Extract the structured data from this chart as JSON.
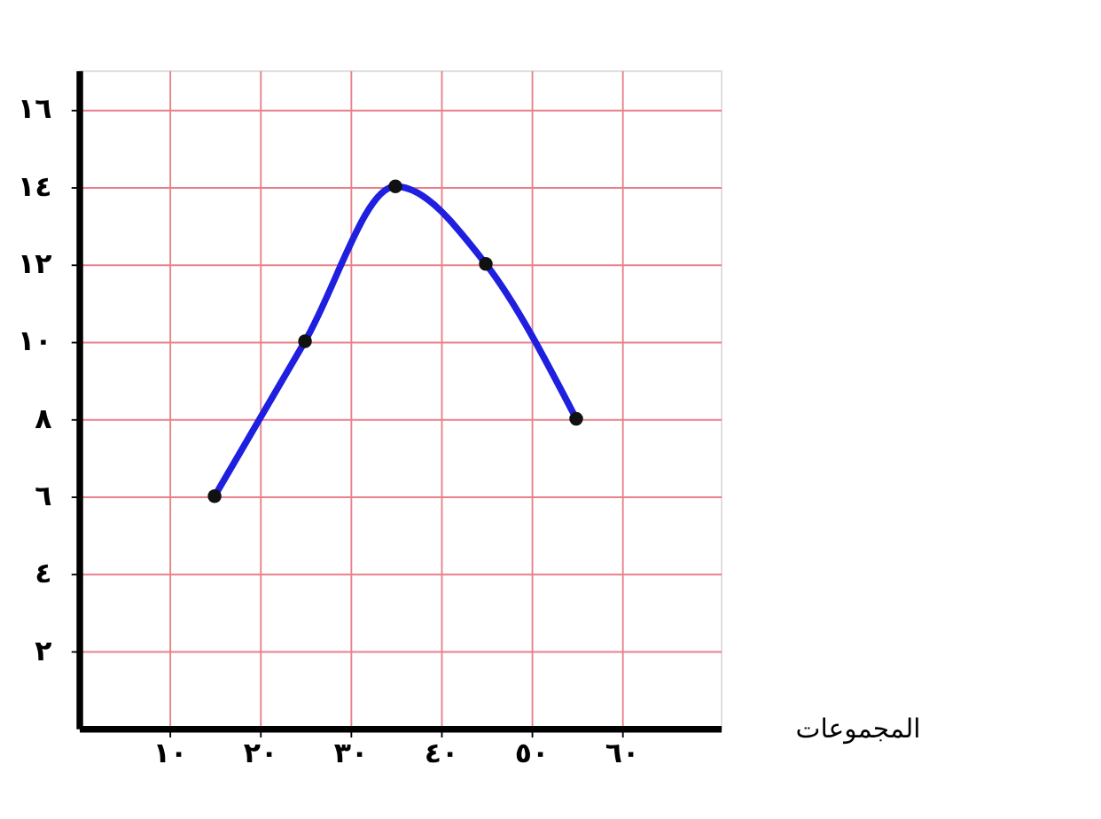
{
  "chart_data": {
    "type": "line",
    "xlabel": "المجموعات",
    "x": [
      15,
      25,
      35,
      45,
      55
    ],
    "series": [
      {
        "color": "#1f1fe0",
        "values": [
          6,
          10,
          14,
          12,
          8
        ]
      }
    ],
    "xlim": [
      0,
      71
    ],
    "ylim": [
      0,
      17
    ],
    "xticks": [
      {
        "value": 10,
        "label": "١٠"
      },
      {
        "value": 20,
        "label": "٢٠"
      },
      {
        "value": 30,
        "label": "٣٠"
      },
      {
        "value": 40,
        "label": "٤٠"
      },
      {
        "value": 50,
        "label": "٥٠"
      },
      {
        "value": 60,
        "label": "٦٠"
      }
    ],
    "yticks": [
      {
        "value": 2,
        "label": "٢"
      },
      {
        "value": 4,
        "label": "٤"
      },
      {
        "value": 6,
        "label": "٦"
      },
      {
        "value": 8,
        "label": "٨"
      },
      {
        "value": 10,
        "label": "١٠"
      },
      {
        "value": 12,
        "label": "١٢"
      },
      {
        "value": 14,
        "label": "١٤"
      },
      {
        "value": 16,
        "label": "١٦"
      }
    ],
    "grid": true,
    "marker": "circle",
    "line_style": "solid"
  }
}
